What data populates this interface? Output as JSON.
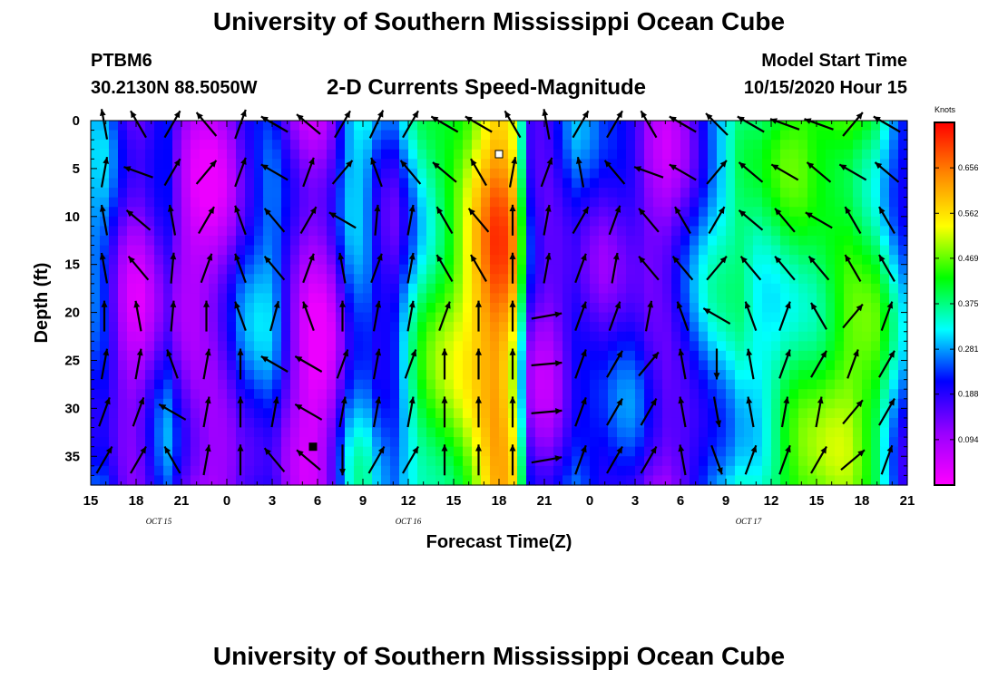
{
  "header": {
    "title": "University of Southern Mississippi Ocean Cube",
    "station": "PTBM6",
    "coords": "30.2130N 88.5050W",
    "subtitle": "2-D Currents Speed-Magnitude",
    "model_start_label": "Model Start Time",
    "model_start_value": "10/15/2020 Hour 15"
  },
  "footer": {
    "title": "University of Southern Mississippi Ocean Cube"
  },
  "chart_data": {
    "type": "heatmap",
    "title": "2-D Currents Speed-Magnitude",
    "xlabel": "Forecast Time(Z)",
    "ylabel": "Depth (ft)",
    "x_hours_range": [
      0,
      54
    ],
    "ylim": [
      0,
      38
    ],
    "y_inverted": true,
    "x_ticks": [
      {
        "h": 0,
        "label": "15"
      },
      {
        "h": 3,
        "label": "18"
      },
      {
        "h": 6,
        "label": "21"
      },
      {
        "h": 9,
        "label": "0"
      },
      {
        "h": 12,
        "label": "3"
      },
      {
        "h": 15,
        "label": "6"
      },
      {
        "h": 18,
        "label": "9"
      },
      {
        "h": 21,
        "label": "12"
      },
      {
        "h": 24,
        "label": "15"
      },
      {
        "h": 27,
        "label": "18"
      },
      {
        "h": 30,
        "label": "21"
      },
      {
        "h": 33,
        "label": "0"
      },
      {
        "h": 36,
        "label": "3"
      },
      {
        "h": 39,
        "label": "6"
      },
      {
        "h": 42,
        "label": "9"
      },
      {
        "h": 45,
        "label": "12"
      },
      {
        "h": 48,
        "label": "15"
      },
      {
        "h": 51,
        "label": "18"
      },
      {
        "h": 54,
        "label": "21"
      }
    ],
    "day_labels": [
      {
        "h": 4.5,
        "label": "OCT 15"
      },
      {
        "h": 21,
        "label": "OCT 16"
      },
      {
        "h": 43.5,
        "label": "OCT 17"
      }
    ],
    "y_ticks": [
      0,
      5,
      10,
      15,
      20,
      25,
      30,
      35
    ],
    "colorbar": {
      "units": "Knots",
      "min": 0,
      "max": 0.75,
      "ticks": [
        0.094,
        0.188,
        0.281,
        0.375,
        0.469,
        0.562,
        0.656
      ],
      "colors": [
        "#ff00ff",
        "#9900ff",
        "#0000ff",
        "#00ffff",
        "#00ff00",
        "#ffff00",
        "#ff8800",
        "#ff0000"
      ]
    },
    "speed_profiles": [
      {
        "h": 0,
        "speed": 0.26
      },
      {
        "h": 1,
        "speed": 0.24
      },
      {
        "h": 2,
        "speed": 0.14
      },
      {
        "h": 3,
        "speed": 0.09
      },
      {
        "h": 4,
        "speed": 0.15
      },
      {
        "h": 5,
        "speed": 0.22
      },
      {
        "h": 6,
        "speed": 0.12
      },
      {
        "h": 7,
        "speed": 0.08
      },
      {
        "h": 8,
        "speed": 0.08
      },
      {
        "h": 9,
        "speed": 0.12
      },
      {
        "h": 10,
        "speed": 0.2
      },
      {
        "h": 11,
        "speed": 0.24
      },
      {
        "h": 12,
        "speed": 0.26
      },
      {
        "h": 13,
        "speed": 0.16
      },
      {
        "h": 14,
        "speed": 0.08
      },
      {
        "h": 15,
        "speed": 0.05
      },
      {
        "h": 16,
        "speed": 0.12
      },
      {
        "h": 17,
        "speed": 0.26
      },
      {
        "h": 18,
        "speed": 0.3
      },
      {
        "h": 19,
        "speed": 0.22
      },
      {
        "h": 20,
        "speed": 0.2
      },
      {
        "h": 21,
        "speed": 0.3
      },
      {
        "h": 22,
        "speed": 0.38
      },
      {
        "h": 23,
        "speed": 0.42
      },
      {
        "h": 24,
        "speed": 0.46
      },
      {
        "h": 25,
        "speed": 0.52
      },
      {
        "h": 26,
        "speed": 0.6
      },
      {
        "h": 27,
        "speed": 0.66
      },
      {
        "h": 28,
        "speed": 0.56
      },
      {
        "h": 29,
        "speed": 0.18
      },
      {
        "h": 30,
        "speed": 0.12
      },
      {
        "h": 31,
        "speed": 0.16
      },
      {
        "h": 32,
        "speed": 0.22
      },
      {
        "h": 33,
        "speed": 0.2
      },
      {
        "h": 34,
        "speed": 0.18
      },
      {
        "h": 35,
        "speed": 0.2
      },
      {
        "h": 36,
        "speed": 0.2
      },
      {
        "h": 37,
        "speed": 0.14
      },
      {
        "h": 38,
        "speed": 0.12
      },
      {
        "h": 39,
        "speed": 0.16
      },
      {
        "h": 40,
        "speed": 0.22
      },
      {
        "h": 41,
        "speed": 0.28
      },
      {
        "h": 42,
        "speed": 0.32
      },
      {
        "h": 43,
        "speed": 0.36
      },
      {
        "h": 44,
        "speed": 0.34
      },
      {
        "h": 45,
        "speed": 0.36
      },
      {
        "h": 46,
        "speed": 0.4
      },
      {
        "h": 47,
        "speed": 0.42
      },
      {
        "h": 48,
        "speed": 0.42
      },
      {
        "h": 49,
        "speed": 0.44
      },
      {
        "h": 50,
        "speed": 0.46
      },
      {
        "h": 51,
        "speed": 0.44
      },
      {
        "h": 52,
        "speed": 0.4
      },
      {
        "h": 53,
        "speed": 0.3
      },
      {
        "h": 54,
        "speed": 0.22
      }
    ],
    "vector_depths": [
      0,
      5,
      10,
      15,
      20,
      25,
      30,
      35
    ],
    "vector_directions_deg": [
      [
        350,
        330,
        30,
        320,
        20,
        300,
        310,
        30,
        25,
        30,
        300,
        300,
        330,
        350,
        30,
        30,
        330,
        300,
        315,
        300,
        290,
        290,
        40,
        300
      ],
      [
        10,
        290,
        30,
        40,
        20,
        300,
        20,
        40,
        340,
        320,
        310,
        330,
        10,
        20,
        350,
        320,
        290,
        300,
        40,
        310,
        300,
        310,
        300,
        310
      ],
      [
        350,
        310,
        350,
        30,
        340,
        320,
        30,
        300,
        5,
        10,
        330,
        320,
        0,
        10,
        30,
        20,
        320,
        330,
        30,
        310,
        320,
        300,
        330,
        330
      ],
      [
        350,
        320,
        5,
        20,
        340,
        320,
        20,
        350,
        20,
        10,
        330,
        330,
        0,
        10,
        20,
        10,
        320,
        320,
        40,
        320,
        320,
        320,
        330,
        330
      ],
      [
        0,
        350,
        5,
        0,
        340,
        15,
        340,
        0,
        10,
        10,
        20,
        0,
        0,
        80,
        20,
        20,
        10,
        340,
        300,
        340,
        20,
        330,
        40,
        20
      ],
      [
        10,
        10,
        340,
        10,
        0,
        300,
        300,
        20,
        10,
        20,
        0,
        0,
        0,
        85,
        20,
        30,
        40,
        350,
        180,
        350,
        20,
        30,
        20,
        30
      ],
      [
        20,
        20,
        300,
        10,
        0,
        10,
        300,
        10,
        10,
        10,
        0,
        0,
        0,
        85,
        20,
        30,
        30,
        350,
        170,
        350,
        10,
        10,
        40,
        30
      ],
      [
        30,
        30,
        330,
        10,
        0,
        320,
        310,
        180,
        30,
        30,
        0,
        0,
        0,
        80,
        20,
        30,
        30,
        350,
        160,
        20,
        20,
        30,
        50,
        20
      ]
    ],
    "markers": [
      {
        "h": 27,
        "depth": 3.5,
        "kind": "white-square"
      },
      {
        "h": 14.7,
        "depth": 34,
        "kind": "black-square"
      }
    ]
  }
}
